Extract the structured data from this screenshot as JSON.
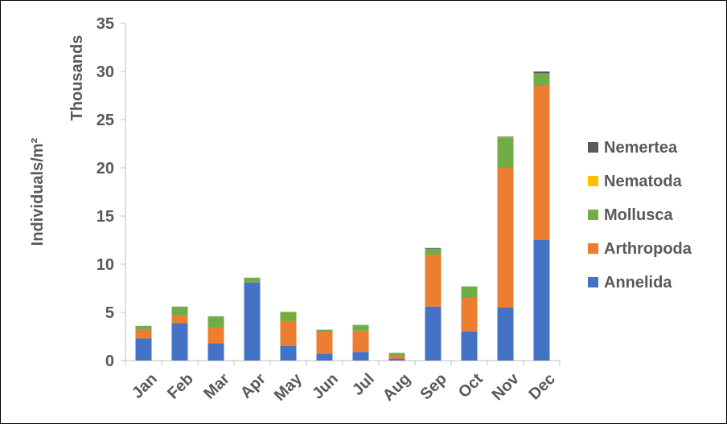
{
  "chart_data": {
    "type": "bar",
    "stacked": true,
    "ylabel": "Individuals/m²",
    "yunit": "Thousands",
    "ylim": [
      0,
      35
    ],
    "yticks": [
      0,
      5,
      10,
      15,
      20,
      25,
      30,
      35
    ],
    "grid": false,
    "legend_position": "right",
    "categories": [
      "Jan",
      "Feb",
      "Mar",
      "Apr",
      "May",
      "Jun",
      "Jul",
      "Aug",
      "Sep",
      "Oct",
      "Nov",
      "Dec"
    ],
    "series": [
      {
        "name": "Annelida",
        "color": "#4472C4",
        "values": [
          2.3,
          3.9,
          1.8,
          8.1,
          1.5,
          0.7,
          0.9,
          0.2,
          5.6,
          3.0,
          5.5,
          12.5
        ]
      },
      {
        "name": "Arthropoda",
        "color": "#ED7D31",
        "values": [
          0.9,
          0.8,
          1.7,
          0.0,
          2.6,
          2.3,
          2.2,
          0.3,
          5.4,
          3.5,
          14.5,
          16.0
        ]
      },
      {
        "name": "Mollusca",
        "color": "#70AD47",
        "values": [
          0.4,
          0.9,
          1.1,
          0.5,
          0.9,
          0.2,
          0.6,
          0.3,
          0.6,
          1.2,
          3.1,
          1.3
        ]
      },
      {
        "name": "Nematoda",
        "color": "#FFC000",
        "values": [
          0,
          0,
          0,
          0,
          0.05,
          0,
          0,
          0,
          0,
          0,
          0.05,
          0
        ]
      },
      {
        "name": "Nemertea",
        "color": "#595959",
        "values": [
          0,
          0,
          0,
          0,
          0,
          0,
          0,
          0,
          0.05,
          0,
          0.05,
          0.2
        ]
      }
    ]
  }
}
